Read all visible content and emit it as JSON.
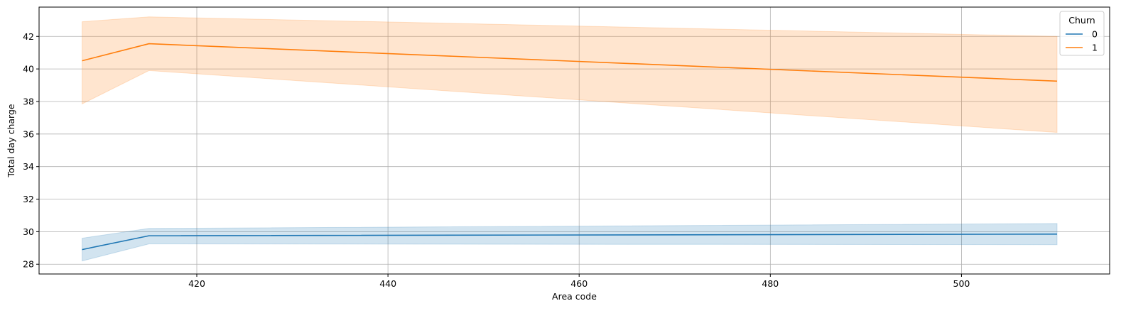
{
  "chart_data": {
    "type": "line",
    "xlabel": "Area code",
    "ylabel": "Total day charge",
    "xlim": [
      403.5,
      515.5
    ],
    "ylim": [
      27.4,
      43.8
    ],
    "x_ticks": [
      420,
      440,
      460,
      480,
      500
    ],
    "y_ticks": [
      28,
      30,
      32,
      34,
      36,
      38,
      40,
      42
    ],
    "grid": true,
    "legend": {
      "title": "Churn",
      "placement": "top-right"
    },
    "x": [
      408,
      415,
      510
    ],
    "series": [
      {
        "name": "0",
        "color": "#1f77b4",
        "values": [
          28.9,
          29.75,
          29.85
        ],
        "ci_lower": [
          28.2,
          29.25,
          29.2
        ],
        "ci_upper": [
          29.6,
          30.2,
          30.5
        ]
      },
      {
        "name": "1",
        "color": "#ff7f0e",
        "values": [
          40.5,
          41.55,
          39.25
        ],
        "ci_lower": [
          37.85,
          39.9,
          36.1
        ],
        "ci_upper": [
          42.9,
          43.2,
          42.0
        ]
      }
    ]
  }
}
